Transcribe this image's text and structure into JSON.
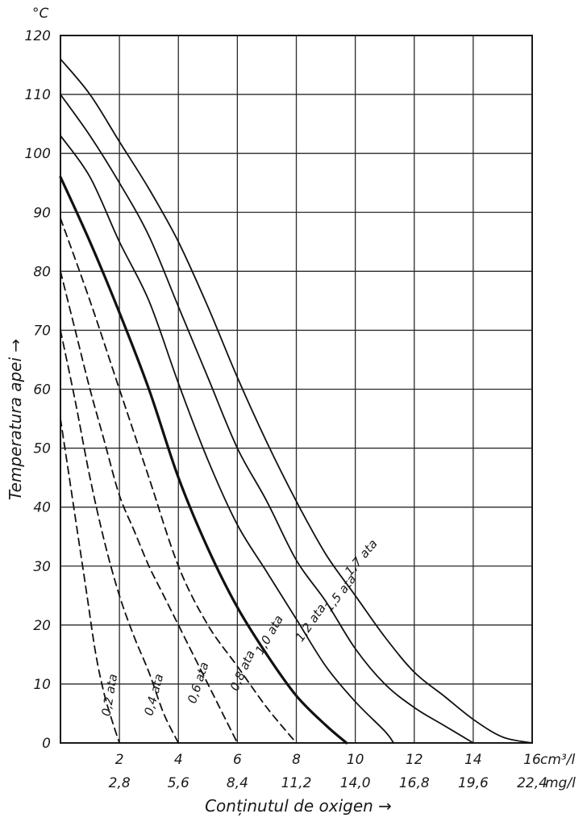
{
  "chart_data": {
    "type": "line",
    "title": "",
    "xlabel": "Conținutul de oxigen →",
    "ylabel": "Temperatura apei →",
    "y_unit": "°C",
    "x_unit_primary": "cm³/l",
    "x_unit_secondary": "mg/l",
    "xlim": [
      0,
      16
    ],
    "ylim": [
      0,
      120
    ],
    "x_gridlines": [
      0,
      2,
      4,
      6,
      8,
      10,
      12,
      14,
      16
    ],
    "y_gridlines": [
      0,
      10,
      20,
      30,
      40,
      50,
      60,
      70,
      80,
      90,
      100,
      110,
      120
    ],
    "grid": true,
    "x_ticks": [
      {
        "value": 2,
        "label": "2",
        "sub": "2,8"
      },
      {
        "value": 4,
        "label": "4",
        "sub": "5,6"
      },
      {
        "value": 6,
        "label": "6",
        "sub": "8,4"
      },
      {
        "value": 8,
        "label": "8",
        "sub": "11,2"
      },
      {
        "value": 10,
        "label": "10",
        "sub": "14,0"
      },
      {
        "value": 12,
        "label": "12",
        "sub": "16,8"
      },
      {
        "value": 14,
        "label": "14",
        "sub": "19,6"
      },
      {
        "value": 16,
        "label": "16",
        "sub": "22,4"
      }
    ],
    "y_ticks": [
      {
        "value": 0,
        "label": "0"
      },
      {
        "value": 10,
        "label": "10"
      },
      {
        "value": 20,
        "label": "20"
      },
      {
        "value": 30,
        "label": "30"
      },
      {
        "value": 40,
        "label": "40"
      },
      {
        "value": 50,
        "label": "50"
      },
      {
        "value": 60,
        "label": "60"
      },
      {
        "value": 70,
        "label": "70"
      },
      {
        "value": 80,
        "label": "80"
      },
      {
        "value": 90,
        "label": "90"
      },
      {
        "value": 100,
        "label": "100"
      },
      {
        "value": 110,
        "label": "110"
      },
      {
        "value": 120,
        "label": "120"
      }
    ],
    "series": [
      {
        "name": "0,2 ata",
        "style": "dashed",
        "weight": "thin",
        "points": [
          [
            0,
            55
          ],
          [
            0.3,
            45
          ],
          [
            0.6,
            35
          ],
          [
            0.9,
            25
          ],
          [
            1.2,
            15
          ],
          [
            1.5,
            8
          ],
          [
            1.8,
            3
          ],
          [
            2,
            0
          ]
        ]
      },
      {
        "name": "0,4 ata",
        "style": "dashed",
        "weight": "thin",
        "points": [
          [
            0,
            70
          ],
          [
            0.5,
            58
          ],
          [
            1,
            45
          ],
          [
            1.5,
            34
          ],
          [
            2,
            25
          ],
          [
            2.5,
            18
          ],
          [
            3,
            12
          ],
          [
            3.5,
            5
          ],
          [
            4,
            0
          ]
        ]
      },
      {
        "name": "0,6 ata",
        "style": "dashed",
        "weight": "thin",
        "points": [
          [
            0,
            80
          ],
          [
            0.5,
            70
          ],
          [
            1,
            60
          ],
          [
            1.5,
            51
          ],
          [
            2,
            42
          ],
          [
            2.5,
            36
          ],
          [
            3,
            30
          ],
          [
            3.5,
            25
          ],
          [
            4,
            20
          ],
          [
            4.5,
            15
          ],
          [
            5,
            10
          ],
          [
            5.5,
            5
          ],
          [
            6,
            0
          ]
        ]
      },
      {
        "name": "0,8 ata",
        "style": "dashed",
        "weight": "thin",
        "points": [
          [
            0,
            89
          ],
          [
            1,
            75
          ],
          [
            2,
            60
          ],
          [
            3,
            45
          ],
          [
            4,
            30
          ],
          [
            5,
            20
          ],
          [
            6,
            13
          ],
          [
            7,
            6
          ],
          [
            8,
            0
          ]
        ]
      },
      {
        "name": "1,0 ata",
        "style": "solid",
        "weight": "bold",
        "points": [
          [
            0,
            96
          ],
          [
            1,
            85
          ],
          [
            2,
            73
          ],
          [
            3,
            60
          ],
          [
            4,
            45
          ],
          [
            5,
            33
          ],
          [
            6,
            23
          ],
          [
            7,
            15
          ],
          [
            8,
            8
          ],
          [
            9,
            3
          ],
          [
            9.7,
            0
          ]
        ]
      },
      {
        "name": "1,2 ata",
        "style": "solid",
        "weight": "thin",
        "points": [
          [
            0,
            103
          ],
          [
            1,
            96
          ],
          [
            2,
            85
          ],
          [
            3,
            75
          ],
          [
            4,
            61
          ],
          [
            5,
            48
          ],
          [
            6,
            37
          ],
          [
            7,
            29
          ],
          [
            8,
            21
          ],
          [
            9,
            13
          ],
          [
            10,
            7
          ],
          [
            11,
            2
          ],
          [
            11.3,
            0
          ]
        ]
      },
      {
        "name": "1,5 ata",
        "style": "solid",
        "weight": "thin",
        "points": [
          [
            0,
            110
          ],
          [
            1,
            103
          ],
          [
            2,
            95
          ],
          [
            3,
            86
          ],
          [
            4,
            74
          ],
          [
            5,
            62
          ],
          [
            6,
            50
          ],
          [
            7,
            41
          ],
          [
            8,
            31
          ],
          [
            9,
            24
          ],
          [
            10,
            16
          ],
          [
            11,
            10
          ],
          [
            12,
            6
          ],
          [
            13,
            3
          ],
          [
            14,
            0
          ]
        ]
      },
      {
        "name": "1,7 ata",
        "style": "solid",
        "weight": "thin",
        "points": [
          [
            0,
            116
          ],
          [
            1,
            110
          ],
          [
            2,
            102
          ],
          [
            3,
            94
          ],
          [
            4,
            85
          ],
          [
            5,
            74
          ],
          [
            6,
            62
          ],
          [
            7,
            51
          ],
          [
            8,
            41
          ],
          [
            9,
            32
          ],
          [
            10,
            25
          ],
          [
            11,
            18
          ],
          [
            12,
            12
          ],
          [
            13,
            8
          ],
          [
            14,
            4
          ],
          [
            15,
            1
          ],
          [
            16,
            0
          ]
        ]
      }
    ]
  }
}
